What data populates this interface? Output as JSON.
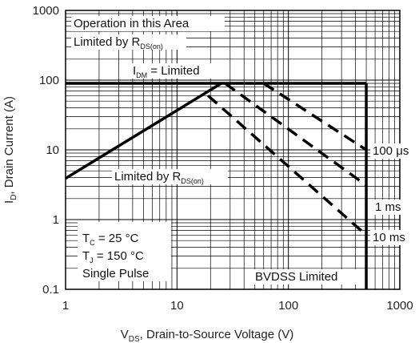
{
  "chart_data": {
    "type": "line",
    "xscale": "log",
    "yscale": "log",
    "xlim": [
      1,
      1000
    ],
    "ylim": [
      0.1,
      1000
    ],
    "grid": true,
    "xlabel": {
      "main": "V",
      "sub": "DS",
      "rest": ", Drain-to-Source Voltage (V)"
    },
    "ylabel": {
      "main": "I",
      "sub": "D",
      "rest": ", Drain Current (A)"
    },
    "x_ticks": [
      {
        "value": 1,
        "label": "1"
      },
      {
        "value": 10,
        "label": "10"
      },
      {
        "value": 100,
        "label": "100"
      },
      {
        "value": 1000,
        "label": "1000"
      }
    ],
    "y_ticks": [
      {
        "value": 0.1,
        "label": "0.1"
      },
      {
        "value": 1,
        "label": "1"
      },
      {
        "value": 10,
        "label": "10"
      },
      {
        "value": 100,
        "label": "100"
      },
      {
        "value": 1000,
        "label": "1000"
      }
    ],
    "series": [
      {
        "id": "rdson",
        "style": "solid",
        "points": [
          [
            1,
            3.9
          ],
          [
            25,
            90
          ]
        ]
      },
      {
        "id": "idm",
        "style": "solid",
        "points": [
          [
            1,
            90
          ],
          [
            500,
            90
          ]
        ]
      },
      {
        "id": "bvdss",
        "style": "solid",
        "points": [
          [
            500,
            90
          ],
          [
            500,
            0.1
          ]
        ]
      },
      {
        "id": "p100us",
        "style": "dashed",
        "points": [
          [
            60,
            90
          ],
          [
            500,
            10
          ]
        ]
      },
      {
        "id": "p1ms",
        "style": "dashed",
        "points": [
          [
            27,
            90
          ],
          [
            500,
            3.1
          ]
        ]
      },
      {
        "id": "p10ms",
        "style": "dashed",
        "points": [
          [
            19,
            60
          ],
          [
            500,
            0.6
          ]
        ]
      }
    ],
    "annotations": {
      "region_line1": "Operation in this Area",
      "region_line2_main": "Limited by R",
      "region_line2_sub": "DS(on)",
      "idm_main": "I",
      "idm_sub": "DM",
      "idm_rest": " = Limited",
      "rdson_main": "Limited by R",
      "rdson_sub": "DS(on)",
      "p100us": "100 μs",
      "p1ms": "1 ms",
      "p10ms": "10 ms",
      "tc_main": "T",
      "tc_sub": "C",
      "tc_rest": " = 25 °C",
      "tj_main": "T",
      "tj_sub": "J",
      "tj_rest": " = 150 °C",
      "single_pulse": "Single Pulse",
      "bvdss": "BVDSS Limited"
    }
  }
}
